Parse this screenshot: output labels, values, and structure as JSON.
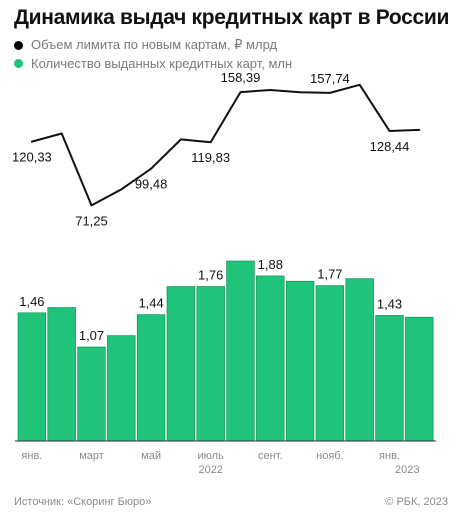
{
  "title": "Динамика выдач кредитных карт в России",
  "legend": [
    {
      "label": "Объем лимита по новым картам, ₽ млрд",
      "color": "#000000"
    },
    {
      "label": "Количество выданных кредитных карт, млн",
      "color": "#1fc37a"
    }
  ],
  "colors": {
    "bar": "#1fc37a",
    "bar_edge": "#0b8a4f",
    "line": "#111111"
  },
  "chart_data": [
    {
      "type": "line",
      "name": "Объем лимита по новым картам, ₽ млрд",
      "x": [
        "2022-01",
        "2022-02",
        "2022-03",
        "2022-04",
        "2022-05",
        "2022-06",
        "2022-07",
        "2022-08",
        "2022-09",
        "2022-10",
        "2022-11",
        "2022-12",
        "2023-01",
        "2023-02"
      ],
      "values": [
        120.33,
        126.5,
        71.25,
        83.5,
        99.48,
        122.0,
        119.83,
        158.39,
        160.0,
        158.3,
        157.74,
        164.0,
        128.44,
        129.3
      ],
      "data_labels": [
        {
          "index": 0,
          "text": "120,33"
        },
        {
          "index": 2,
          "text": "71,25"
        },
        {
          "index": 4,
          "text": "99,48"
        },
        {
          "index": 6,
          "text": "119,83"
        },
        {
          "index": 7,
          "text": "158,39"
        },
        {
          "index": 10,
          "text": "157,74"
        },
        {
          "index": 12,
          "text": "128,44"
        }
      ]
    },
    {
      "type": "bar",
      "name": "Количество выданных кредитных карт, млн",
      "x": [
        "2022-01",
        "2022-02",
        "2022-03",
        "2022-04",
        "2022-05",
        "2022-06",
        "2022-07",
        "2022-08",
        "2022-09",
        "2022-10",
        "2022-11",
        "2022-12",
        "2023-01",
        "2023-02"
      ],
      "values": [
        1.46,
        1.52,
        1.07,
        1.2,
        1.44,
        1.76,
        1.76,
        2.05,
        1.88,
        1.82,
        1.77,
        1.85,
        1.43,
        1.41
      ],
      "data_labels": [
        {
          "index": 0,
          "text": "1,46"
        },
        {
          "index": 2,
          "text": "1,07"
        },
        {
          "index": 4,
          "text": "1,44"
        },
        {
          "index": 6,
          "text": "1,76"
        },
        {
          "index": 8,
          "text": "1,88"
        },
        {
          "index": 10,
          "text": "1,77"
        },
        {
          "index": 12,
          "text": "1,43"
        }
      ]
    }
  ],
  "x_axis": {
    "month_labels": [
      {
        "index": 0,
        "text": "янв."
      },
      {
        "index": 2,
        "text": "март"
      },
      {
        "index": 4,
        "text": "май"
      },
      {
        "index": 6,
        "text": "июль"
      },
      {
        "index": 8,
        "text": "сент."
      },
      {
        "index": 10,
        "text": "нояб."
      },
      {
        "index": 12,
        "text": "янв."
      }
    ],
    "year_labels": [
      {
        "index": 6,
        "text": "2022"
      },
      {
        "index": 13,
        "text": "2023"
      }
    ]
  },
  "footer": {
    "source": "Источник: «Скоринг Бюро»",
    "credit": "© РБК, 2023"
  }
}
